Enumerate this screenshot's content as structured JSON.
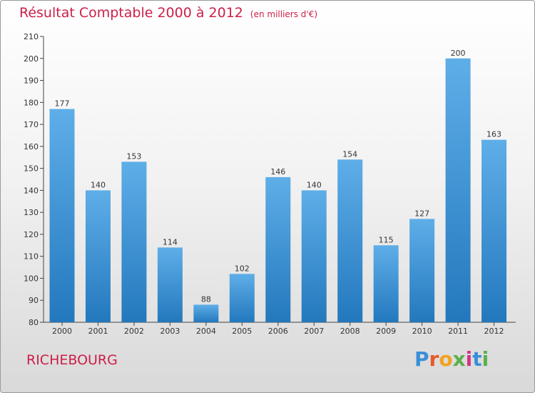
{
  "header": {
    "title": "Résultat Comptable 2000 à 2012",
    "subtitle": "(en milliers d'€)"
  },
  "footer": {
    "place": "RICHEBOURG",
    "logo_letters": [
      "P",
      "r",
      "o",
      "x",
      "i",
      "t",
      "i"
    ],
    "logo_colors": [
      "#3a8fd8",
      "#e8582a",
      "#f2a21e",
      "#5ab04b",
      "#d63384",
      "#3a8fd8",
      "#5ab04b"
    ]
  },
  "chart_data": {
    "type": "bar",
    "title": "Résultat Comptable 2000 à 2012",
    "categories": [
      "2000",
      "2001",
      "2002",
      "2003",
      "2004",
      "2005",
      "2006",
      "2007",
      "2008",
      "2009",
      "2010",
      "2011",
      "2012"
    ],
    "values": [
      177,
      140,
      153,
      114,
      88,
      102,
      146,
      140,
      154,
      115,
      127,
      200,
      163
    ],
    "data_labels": [
      "177",
      "140",
      "153",
      "114",
      "88",
      "102",
      "146",
      "140",
      "154",
      "115",
      "127",
      "200",
      "163"
    ],
    "ylim": [
      80,
      210
    ],
    "yticks": [
      80,
      90,
      100,
      110,
      120,
      130,
      140,
      150,
      160,
      170,
      180,
      190,
      200,
      210
    ],
    "ytick_labels": [
      "80",
      "90",
      "100",
      "110",
      "120",
      "130",
      "140",
      "150",
      "160",
      "170",
      "180",
      "190",
      "200",
      "210"
    ],
    "grid": false,
    "legend": "none",
    "bar_color_top": "#5eaee8",
    "bar_color_bottom": "#2378bd"
  }
}
